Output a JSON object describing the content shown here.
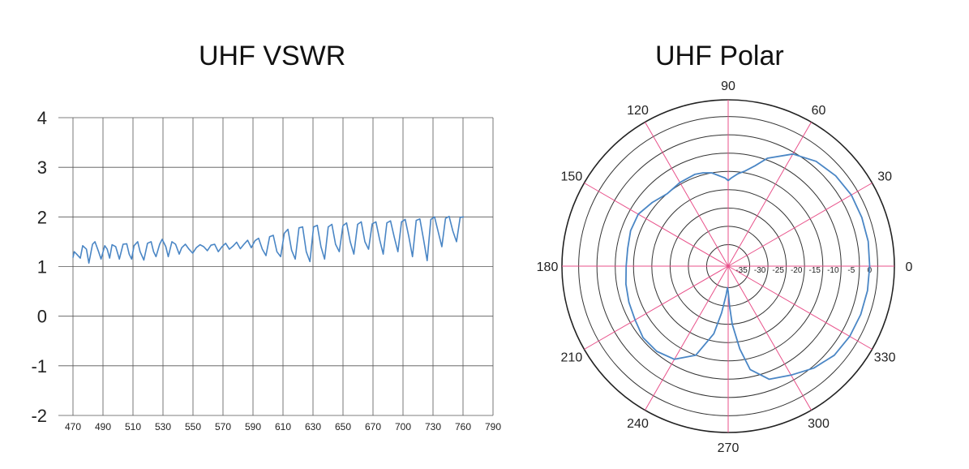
{
  "charts": [
    {
      "id": "vswr",
      "title": "UHF VSWR",
      "chart_data": {
        "type": "line",
        "title": "UHF VSWR",
        "xlabel": "",
        "ylabel": "",
        "xlim": [
          470,
          790
        ],
        "ylim": [
          -2,
          4
        ],
        "x_ticks": [
          "470",
          "490",
          "510",
          "530",
          "550",
          "570",
          "590",
          "610",
          "630",
          "650",
          "670",
          "700",
          "730",
          "760",
          "790"
        ],
        "y_ticks": [
          "4",
          "3",
          "2",
          "1",
          "0",
          "-1",
          "-2"
        ],
        "grid": true,
        "series": [
          {
            "color": "#4a86c5",
            "x": [
              470,
              471,
              473,
              476,
              478,
              481,
              483,
              486,
              488,
              491,
              493,
              496,
              498,
              500,
              502,
              505,
              508,
              511,
              514,
              516,
              518,
              520,
              523,
              525,
              528,
              531,
              534,
              536,
              538,
              541,
              543,
              546,
              548,
              551,
              554,
              557,
              559,
              562,
              565,
              568,
              571,
              574,
              577,
              580,
              583,
              586,
              589,
              592,
              595,
              598,
              601,
              604,
              607,
              610,
              613,
              616,
              619,
              622,
              625,
              628,
              631,
              634,
              637,
              640,
              643,
              646,
              649,
              652,
              655,
              658,
              661,
              664,
              667,
              670,
              673,
              676,
              679,
              682,
              685,
              688,
              691,
              694,
              697,
              700,
              703,
              706,
              709,
              712,
              715,
              718,
              721,
              724,
              727,
              730,
              733,
              736,
              739,
              742,
              745,
              748,
              751,
              754,
              757,
              760,
              763,
              766,
              769,
              772,
              775,
              778,
              781,
              784,
              787,
              790
            ],
            "y": [
              1.18,
              1.3,
              1.25,
              1.17,
              1.42,
              1.35,
              1.07,
              1.45,
              1.5,
              1.3,
              1.15,
              1.42,
              1.35,
              1.17,
              1.44,
              1.4,
              1.15,
              1.45,
              1.46,
              1.25,
              1.15,
              1.42,
              1.5,
              1.3,
              1.13,
              1.47,
              1.5,
              1.3,
              1.2,
              1.45,
              1.55,
              1.4,
              1.2,
              1.5,
              1.45,
              1.25,
              1.38,
              1.45,
              1.35,
              1.27,
              1.38,
              1.44,
              1.4,
              1.32,
              1.43,
              1.45,
              1.3,
              1.4,
              1.47,
              1.35,
              1.41,
              1.49,
              1.36,
              1.45,
              1.53,
              1.38,
              1.52,
              1.57,
              1.35,
              1.22,
              1.6,
              1.63,
              1.3,
              1.2,
              1.67,
              1.75,
              1.33,
              1.15,
              1.78,
              1.8,
              1.3,
              1.1,
              1.8,
              1.83,
              1.4,
              1.15,
              1.8,
              1.85,
              1.45,
              1.3,
              1.82,
              1.88,
              1.5,
              1.25,
              1.85,
              1.9,
              1.5,
              1.35,
              1.86,
              1.9,
              1.55,
              1.25,
              1.88,
              1.92,
              1.6,
              1.3,
              1.9,
              1.95,
              1.6,
              1.2,
              1.93,
              1.96,
              1.55,
              1.12,
              1.95,
              2.0,
              1.7,
              1.4,
              1.97,
              2.01,
              1.72,
              1.5,
              1.99,
              2.0
            ]
          }
        ]
      }
    },
    {
      "id": "polar",
      "title": "UHF Polar",
      "chart_data": {
        "type": "polar",
        "title": "UHF Polar",
        "angle_ticks": [
          "0",
          "30",
          "60",
          "90",
          "120",
          "150",
          "180",
          "210",
          "240",
          "270",
          "300",
          "330"
        ],
        "radial_ticks": [
          "-35",
          "-30",
          "-25",
          "-20",
          "-15",
          "-10",
          "-5",
          "0"
        ],
        "rlim": [
          -40,
          0
        ],
        "grid": true,
        "grid_color": "#e8518a",
        "series": [
          {
            "color": "#4a86c5",
            "theta": [
              0,
              10,
              20,
              30,
              40,
              50,
              60,
              70,
              75,
              80,
              84,
              88,
              90,
              92,
              96,
              100,
              105,
              110,
              120,
              130,
              140,
              150,
              160,
              170,
              180,
              190,
              200,
              210,
              220,
              230,
              240,
              250,
              258,
              262,
              266,
              268,
              270,
              272,
              274,
              278,
              282,
              290,
              300,
              310,
              320,
              330,
              340,
              350,
              360
            ],
            "r": [
              -2.2,
              -2.0,
              -2.0,
              -2.0,
              -2.5,
              -3.5,
              -5.5,
              -9.5,
              -12.5,
              -14.5,
              -15.5,
              -16.8,
              -17.5,
              -16.8,
              -16.0,
              -15.0,
              -14.5,
              -14.2,
              -14.5,
              -15.0,
              -13.8,
              -12.5,
              -12.5,
              -13.0,
              -13.0,
              -12.5,
              -12.0,
              -11.5,
              -10.5,
              -10.5,
              -11.5,
              -15.0,
              -22.0,
              -28.0,
              -33.0,
              -35.0,
              -34.0,
              -30.0,
              -25.0,
              -18.0,
              -12.0,
              -8.0,
              -6.5,
              -4.5,
              -3.0,
              -2.5,
              -2.3,
              -2.2,
              -2.2
            ]
          }
        ]
      }
    }
  ]
}
